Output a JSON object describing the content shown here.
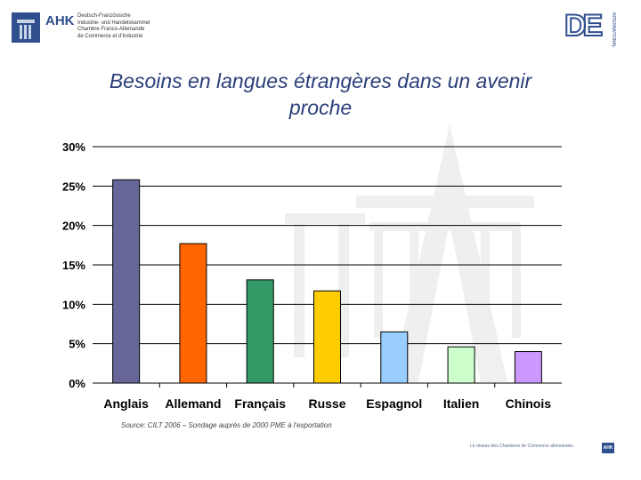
{
  "header": {
    "ahk_title": "AHK",
    "ahk_sub": [
      "Deutsch-Französische",
      "Industrie- und Handelskammer",
      "Chambre Franco-Allemande",
      "de Commerce et d'Industrie"
    ],
    "de_logo": "DE",
    "de_side": "INTERNATIONAL"
  },
  "title_line1": "Besoins en langues étrangères dans un avenir",
  "title_line2": "proche",
  "chart_data": {
    "type": "bar",
    "categories": [
      "Anglais",
      "Allemand",
      "Français",
      "Russe",
      "Espagnol",
      "Italien",
      "Chinois"
    ],
    "values": [
      25.8,
      17.7,
      13.1,
      11.7,
      6.5,
      4.6,
      4.0
    ],
    "colors": [
      "#666699",
      "#ff6600",
      "#339966",
      "#ffcc00",
      "#99ccff",
      "#ccffcc",
      "#cc99ff"
    ],
    "yticks": [
      "0%",
      "5%",
      "10%",
      "15%",
      "20%",
      "25%",
      "30%"
    ],
    "ylim": [
      0,
      30
    ],
    "grid": true
  },
  "source": "Source: CILT 2006 – Sondage auprès de 2000 PME à l'exportation",
  "footer": {
    "text": "Le réseau des Chambres de Commerce allemandes",
    "badge": "AHK"
  }
}
